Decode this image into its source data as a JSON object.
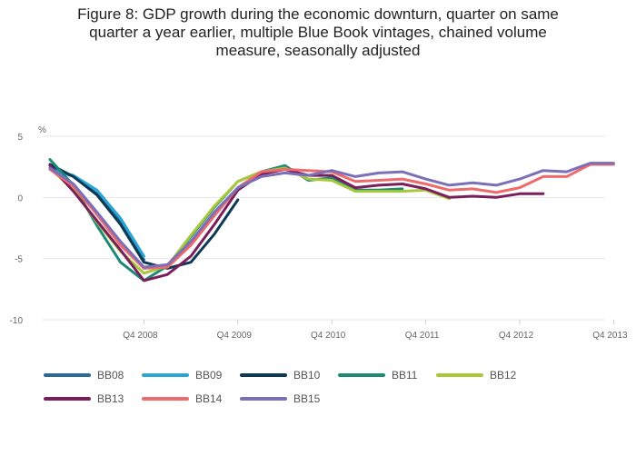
{
  "chart_data": {
    "type": "line",
    "title_lines": [
      "Figure 8: GDP growth during the economic downturn, quarter on same",
      "quarter a year earlier, multiple Blue Book vintages, chained volume",
      "measure, seasonally adjusted"
    ],
    "ylabel": "%",
    "ylim": [
      -10,
      5
    ],
    "y_ticks": [
      5,
      0,
      -5,
      -10
    ],
    "y_tick_labels": [
      "5",
      "0",
      "-5",
      "-10"
    ],
    "x_range": [
      0,
      24
    ],
    "x_ticks": [
      4,
      8,
      12,
      16,
      20,
      24
    ],
    "x_tick_labels": [
      "Q4 2008",
      "Q4 2009",
      "Q4 2010",
      "Q4 2011",
      "Q4 2012",
      "Q4 2013"
    ],
    "grid": true,
    "legend_position": "bottom",
    "series": [
      {
        "name": "BB08",
        "color": "#2a6a9a",
        "x": [
          0,
          1,
          2,
          3,
          4
        ],
        "values": [
          2.4,
          1.7,
          0.3,
          -1.9,
          -5.1
        ]
      },
      {
        "name": "BB09",
        "color": "#2ba5d8",
        "x": [
          0,
          1,
          2,
          3,
          4
        ],
        "values": [
          2.3,
          1.8,
          0.6,
          -1.7,
          -4.8
        ]
      },
      {
        "name": "BB10",
        "color": "#0c3a54",
        "x": [
          0,
          1,
          2,
          3,
          4,
          5,
          6,
          7,
          8
        ],
        "values": [
          2.7,
          1.7,
          0.2,
          -2.2,
          -5.3,
          -5.8,
          -5.3,
          -3.0,
          -0.2
        ]
      },
      {
        "name": "BB11",
        "color": "#1d8a77",
        "x": [
          0,
          1,
          2,
          3,
          4,
          5,
          6,
          7,
          8,
          9,
          10,
          11,
          12,
          13,
          14,
          15
        ],
        "values": [
          3.1,
          1.0,
          -2.3,
          -5.3,
          -6.8,
          -5.6,
          -3.2,
          -0.8,
          1.3,
          2.1,
          2.6,
          1.4,
          1.6,
          0.6,
          0.6,
          0.7
        ]
      },
      {
        "name": "BB12",
        "color": "#a8c83a",
        "x": [
          0,
          1,
          2,
          3,
          4,
          5,
          6,
          7,
          8,
          9,
          10,
          11,
          12,
          13,
          14,
          15,
          16,
          17
        ],
        "values": [
          2.4,
          0.6,
          -2.0,
          -4.4,
          -6.2,
          -5.6,
          -3.1,
          -0.7,
          1.3,
          2.1,
          2.4,
          1.5,
          1.4,
          0.5,
          0.5,
          0.5,
          0.6,
          -0.1
        ]
      },
      {
        "name": "BB13",
        "color": "#7a1f5c",
        "x": [
          0,
          1,
          2,
          3,
          4,
          5,
          6,
          7,
          8,
          9,
          10,
          11,
          12,
          13,
          14,
          15,
          16,
          17,
          18,
          19,
          20,
          21
        ],
        "values": [
          2.6,
          0.5,
          -1.9,
          -4.3,
          -6.8,
          -6.3,
          -4.8,
          -2.2,
          0.6,
          1.9,
          2.3,
          1.8,
          1.8,
          0.8,
          1.0,
          1.1,
          0.7,
          0.0,
          0.1,
          0.0,
          0.3,
          0.3
        ]
      },
      {
        "name": "BB14",
        "color": "#ef6a6a",
        "x": [
          0,
          1,
          2,
          3,
          4,
          5,
          6,
          7,
          8,
          9,
          10,
          11,
          12,
          13,
          14,
          15,
          16,
          17,
          18,
          19,
          20,
          21,
          22,
          23,
          24
        ],
        "values": [
          2.3,
          0.9,
          -1.4,
          -3.9,
          -5.8,
          -5.7,
          -3.9,
          -1.5,
          0.8,
          2.1,
          2.3,
          2.2,
          2.1,
          1.3,
          1.4,
          1.5,
          1.1,
          0.6,
          0.7,
          0.4,
          0.8,
          1.7,
          1.7,
          2.7,
          2.7
        ]
      },
      {
        "name": "BB15",
        "color": "#7a6fb8",
        "x": [
          0,
          1,
          2,
          3,
          4,
          5,
          6,
          7,
          8,
          9,
          10,
          11,
          12,
          13,
          14,
          15,
          16,
          17,
          18,
          19,
          20,
          21,
          22,
          23,
          24
        ],
        "values": [
          2.4,
          1.1,
          -1.2,
          -3.6,
          -5.7,
          -5.5,
          -3.6,
          -1.2,
          0.8,
          1.7,
          2.0,
          1.8,
          2.2,
          1.7,
          2.0,
          2.1,
          1.5,
          1.0,
          1.2,
          1.0,
          1.5,
          2.2,
          2.1,
          2.8,
          2.8
        ]
      }
    ]
  }
}
